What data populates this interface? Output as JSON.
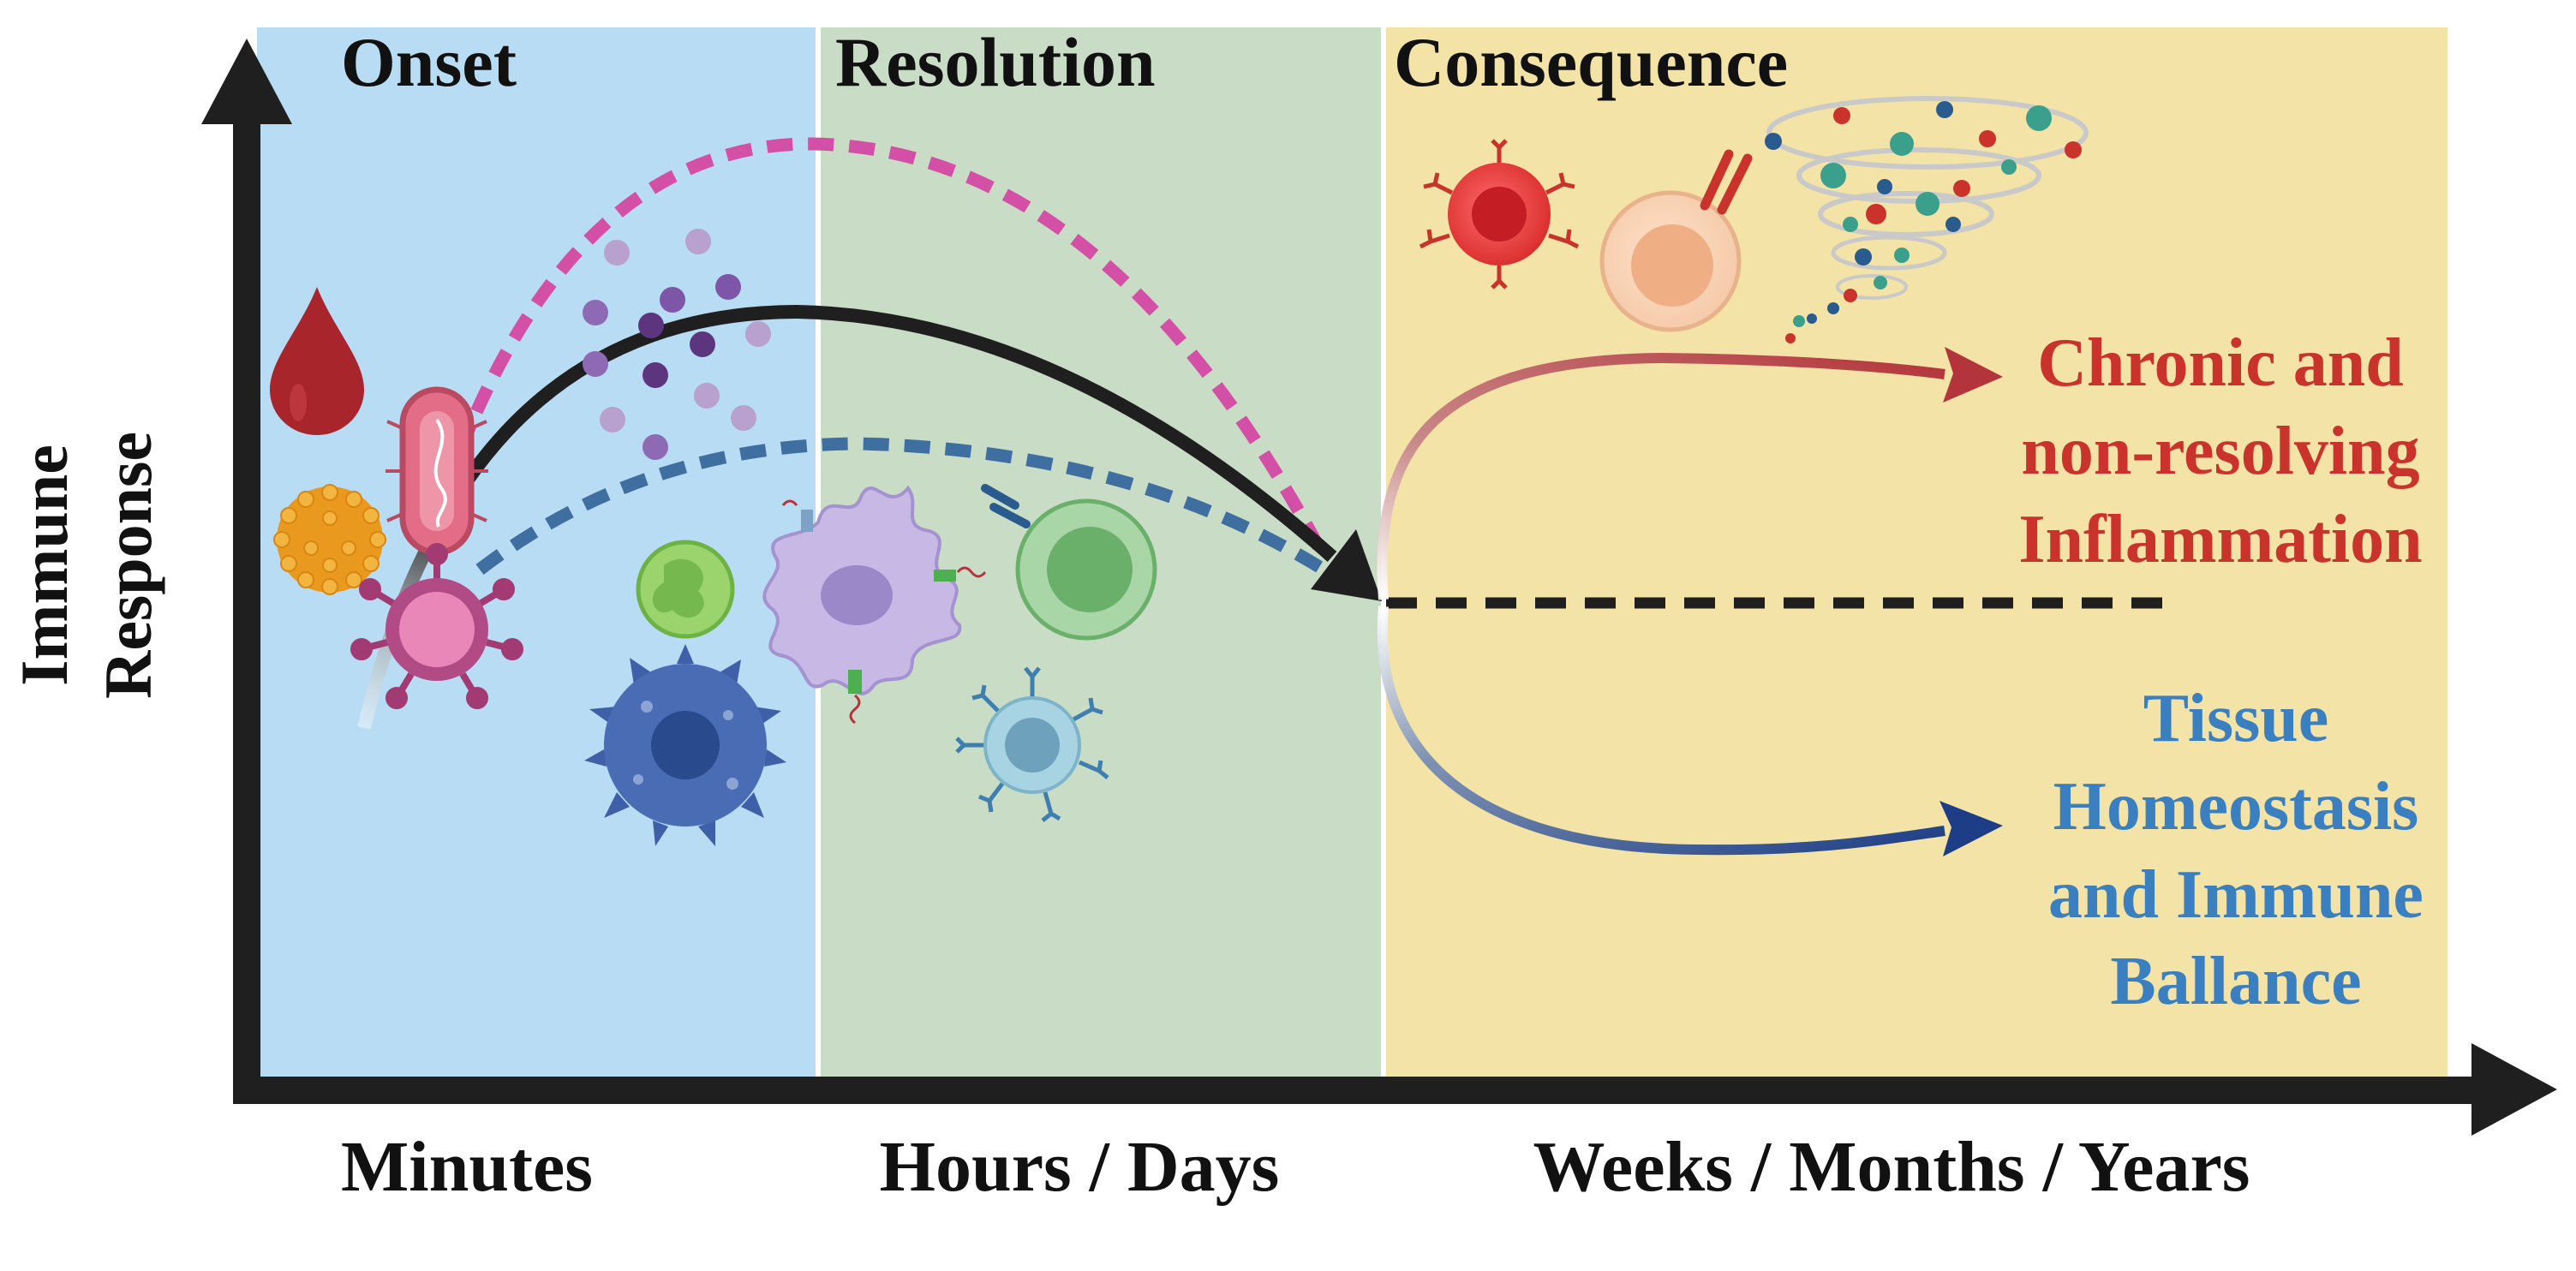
{
  "phases": [
    {
      "label": "Onset",
      "color": "#b8dcf3"
    },
    {
      "label": "Resolution",
      "color": "#c9dcc6"
    },
    {
      "label": "Consequence",
      "color": "#f3e3a6"
    }
  ],
  "x_axis": {
    "ticks": [
      "Minutes",
      "Hours / Days",
      "Weeks / Months / Years"
    ]
  },
  "y_axis": {
    "label_line1": "Immune",
    "label_line2": "Response"
  },
  "outcomes": {
    "chronic": {
      "line1": "Chronic and",
      "line2": "non-resolving",
      "line3": "Inflammation",
      "color": "#c9332c"
    },
    "homeostasis": {
      "line1": "Tissue",
      "line2": "Homeostasis",
      "line3": "and Immune",
      "line4": "Ballance",
      "color": "#3a7fc0"
    }
  },
  "icons": {
    "blood_drop": "blood-drop-icon",
    "pollen": "pollen-icon",
    "bacterium": "bacterium-icon",
    "virus": "virus-icon",
    "neutrophil": "neutrophil-icon",
    "dendritic_cell": "dendritic-cell-icon",
    "macrophage": "macrophage-icon",
    "b_cell": "b-cell-icon",
    "t_cell": "t-cell-icon",
    "cytokines": "cytokine-storm-icon"
  }
}
